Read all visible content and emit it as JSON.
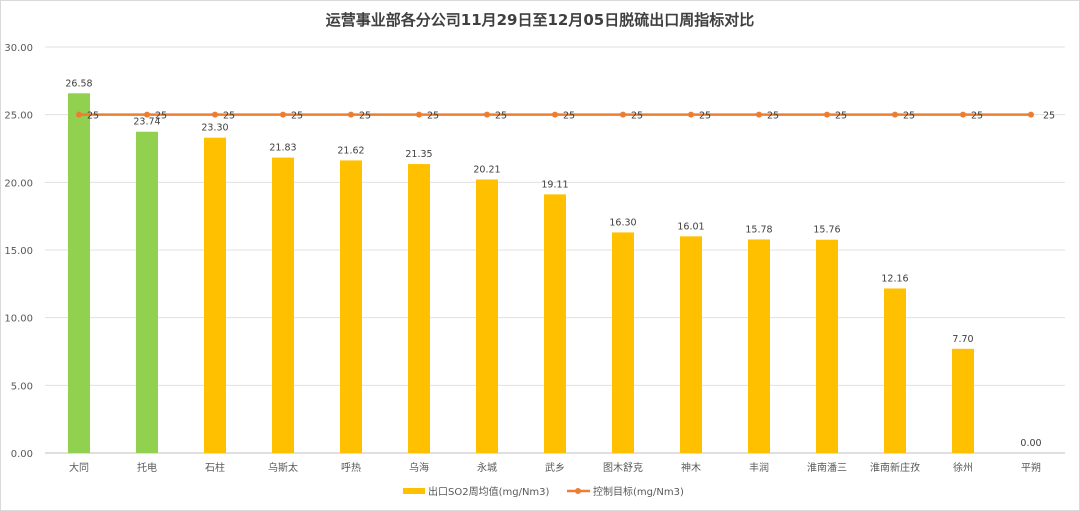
{
  "chart_data": {
    "type": "bar",
    "title": "运营事业部各分公司11月29日至12月05日脱硫出口周指标对比",
    "xlabel": "",
    "ylabel": "",
    "ylim": [
      0,
      30
    ],
    "yticks": [
      "0.00",
      "5.00",
      "10.00",
      "15.00",
      "20.00",
      "25.00",
      "30.00"
    ],
    "grid": true,
    "legend_position": "bottom",
    "categories": [
      "大同",
      "托电",
      "石柱",
      "乌斯太",
      "呼热",
      "乌海",
      "永城",
      "武乡",
      "图木舒克",
      "神木",
      "丰润",
      "淮南潘三",
      "淮南新庄孜",
      "徐州",
      "平朔"
    ],
    "series": [
      {
        "name": "出口SO2周均值(mg/Nm3)",
        "type": "bar",
        "color": "#ffc000",
        "values": [
          26.58,
          23.74,
          23.3,
          21.83,
          21.62,
          21.35,
          20.21,
          19.11,
          16.3,
          16.01,
          15.78,
          15.76,
          12.16,
          7.7,
          0.0
        ],
        "labels": [
          "26.58",
          "23.74",
          "23.30",
          "21.83",
          "21.62",
          "21.35",
          "20.21",
          "19.11",
          "16.30",
          "16.01",
          "15.78",
          "15.76",
          "12.16",
          "7.70",
          "0.00"
        ],
        "highlight_color": "#92d050",
        "highlighted": [
          "大同",
          "托电"
        ]
      },
      {
        "name": "控制目标(mg/Nm3)",
        "type": "line",
        "color": "#ed7d31",
        "values": [
          25,
          25,
          25,
          25,
          25,
          25,
          25,
          25,
          25,
          25,
          25,
          25,
          25,
          25,
          25
        ],
        "labels": [
          "25",
          "25",
          "25",
          "25",
          "25",
          "25",
          "25",
          "25",
          "25",
          "25",
          "25",
          "25",
          "25",
          "25",
          "25"
        ]
      }
    ]
  }
}
